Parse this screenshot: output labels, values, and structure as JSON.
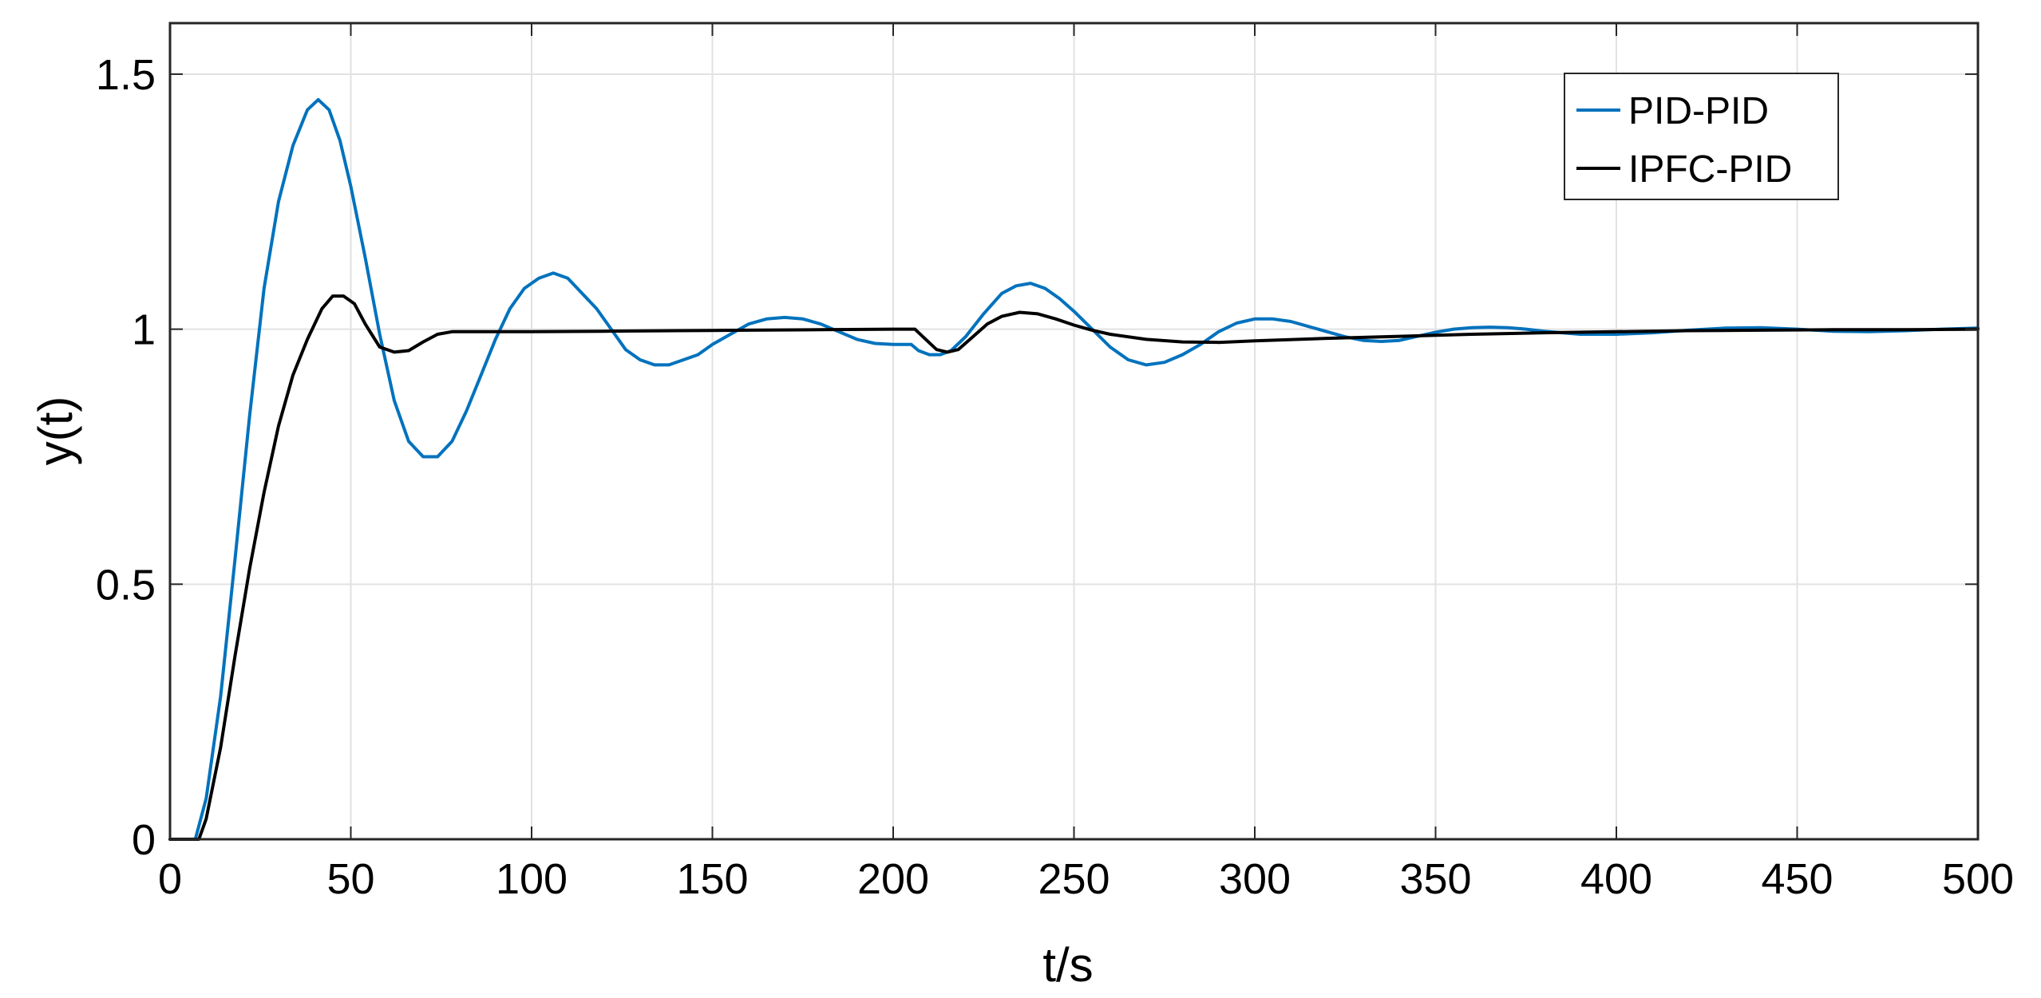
{
  "chart_data": {
    "type": "line",
    "title": "",
    "xlabel": "t/s",
    "ylabel": "y(t)",
    "xlim": [
      0,
      500
    ],
    "ylim": [
      0,
      1.6
    ],
    "xticks": [
      0,
      50,
      100,
      150,
      200,
      250,
      300,
      350,
      400,
      450,
      500
    ],
    "yticks": [
      0,
      0.5,
      1,
      1.5
    ],
    "xtick_labels": [
      "0",
      "50",
      "100",
      "150",
      "200",
      "250",
      "300",
      "350",
      "400",
      "450",
      "500"
    ],
    "ytick_labels": [
      "0",
      "0.5",
      "1",
      "1.5"
    ],
    "grid": true,
    "legend_position": "top-right",
    "series": [
      {
        "name": "PID-PID",
        "color": "#0072BD",
        "x": [
          0,
          5,
          7,
          10,
          14,
          18,
          22,
          26,
          30,
          34,
          38,
          41,
          44,
          47,
          50,
          54,
          58,
          62,
          66,
          70,
          74,
          78,
          82,
          86,
          90,
          94,
          98,
          102,
          106,
          110,
          114,
          118,
          122,
          126,
          130,
          134,
          138,
          142,
          146,
          150,
          155,
          160,
          165,
          170,
          175,
          180,
          185,
          190,
          195,
          200,
          205,
          207,
          210,
          213,
          216,
          220,
          225,
          230,
          234,
          238,
          242,
          246,
          250,
          255,
          260,
          265,
          270,
          275,
          280,
          285,
          290,
          295,
          300,
          305,
          310,
          315,
          320,
          325,
          330,
          335,
          340,
          345,
          350,
          355,
          360,
          365,
          370,
          375,
          380,
          390,
          400,
          410,
          420,
          430,
          440,
          450,
          460,
          470,
          480,
          490,
          500
        ],
        "y": [
          0,
          0,
          0,
          0.08,
          0.28,
          0.55,
          0.83,
          1.08,
          1.25,
          1.36,
          1.43,
          1.45,
          1.43,
          1.37,
          1.28,
          1.14,
          0.99,
          0.86,
          0.78,
          0.75,
          0.75,
          0.78,
          0.84,
          0.91,
          0.98,
          1.04,
          1.08,
          1.1,
          1.11,
          1.1,
          1.07,
          1.04,
          1.0,
          0.96,
          0.94,
          0.93,
          0.93,
          0.94,
          0.95,
          0.97,
          0.99,
          1.01,
          1.02,
          1.023,
          1.02,
          1.01,
          0.995,
          0.98,
          0.972,
          0.97,
          0.97,
          0.958,
          0.95,
          0.95,
          0.958,
          0.985,
          1.03,
          1.07,
          1.085,
          1.09,
          1.08,
          1.06,
          1.035,
          1.0,
          0.965,
          0.94,
          0.93,
          0.935,
          0.95,
          0.97,
          0.995,
          1.012,
          1.02,
          1.02,
          1.015,
          1.005,
          0.995,
          0.985,
          0.978,
          0.976,
          0.978,
          0.986,
          0.994,
          1.0,
          1.003,
          1.004,
          1.003,
          1.0,
          0.996,
          0.99,
          0.99,
          0.993,
          0.998,
          1.002,
          1.003,
          1.0,
          0.996,
          0.995,
          0.997,
          1.0,
          1.002
        ]
      },
      {
        "name": "IPFC-PID",
        "color": "#000000",
        "x": [
          0,
          6,
          8,
          10,
          14,
          18,
          22,
          26,
          30,
          34,
          38,
          42,
          45,
          48,
          51,
          54,
          58,
          62,
          66,
          70,
          74,
          78,
          82,
          90,
          100,
          120,
          140,
          160,
          180,
          200,
          206,
          209,
          212,
          215,
          218,
          222,
          226,
          230,
          235,
          240,
          245,
          250,
          255,
          260,
          270,
          280,
          290,
          300,
          320,
          340,
          360,
          380,
          400,
          420,
          440,
          460,
          480,
          500
        ],
        "y": [
          0,
          0,
          0,
          0.04,
          0.18,
          0.36,
          0.53,
          0.68,
          0.81,
          0.91,
          0.98,
          1.04,
          1.065,
          1.065,
          1.05,
          1.01,
          0.965,
          0.955,
          0.958,
          0.975,
          0.99,
          0.995,
          0.995,
          0.995,
          0.995,
          0.996,
          0.997,
          0.998,
          0.999,
          1.0,
          1.0,
          0.98,
          0.96,
          0.955,
          0.96,
          0.985,
          1.01,
          1.025,
          1.033,
          1.03,
          1.02,
          1.008,
          0.998,
          0.99,
          0.98,
          0.975,
          0.974,
          0.977,
          0.982,
          0.986,
          0.99,
          0.993,
          0.995,
          0.997,
          0.998,
          0.999,
          0.999,
          1.0
        ]
      }
    ]
  }
}
